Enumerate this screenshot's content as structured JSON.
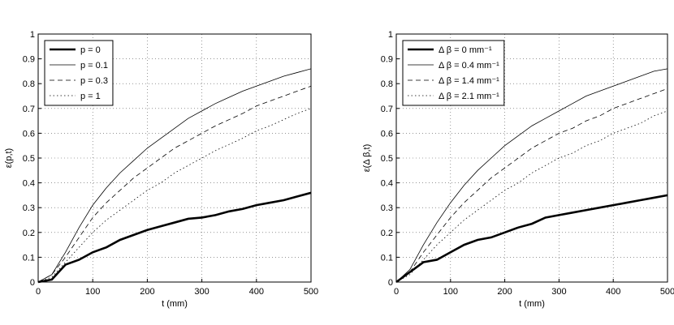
{
  "chart_data": [
    {
      "type": "line",
      "xlabel": "t (mm)",
      "ylabel": "ε(p,t)",
      "x": [
        0,
        25,
        50,
        75,
        100,
        125,
        150,
        175,
        200,
        225,
        250,
        275,
        300,
        325,
        350,
        375,
        400,
        425,
        450,
        475,
        500
      ],
      "xlim": [
        0,
        500
      ],
      "xticks": [
        0,
        100,
        200,
        300,
        400,
        500
      ],
      "ylim": [
        0,
        1
      ],
      "yticks": [
        0,
        0.1,
        0.2,
        0.3,
        0.4,
        0.5,
        0.6,
        0.7,
        0.8,
        0.9,
        1
      ],
      "grid": true,
      "legend": "upper left",
      "series": [
        {
          "name": "p = 0",
          "color": "#000000",
          "linewidth": 2.6,
          "dash": "solid",
          "values": [
            0,
            0.01,
            0.07,
            0.09,
            0.12,
            0.14,
            0.17,
            0.19,
            0.21,
            0.225,
            0.24,
            0.255,
            0.26,
            0.27,
            0.285,
            0.295,
            0.31,
            0.32,
            0.33,
            0.345,
            0.36
          ]
        },
        {
          "name": "p = 0.1",
          "color": "#000000",
          "linewidth": 0.8,
          "dash": "solid",
          "values": [
            0,
            0.03,
            0.12,
            0.22,
            0.31,
            0.38,
            0.44,
            0.49,
            0.54,
            0.58,
            0.62,
            0.66,
            0.69,
            0.72,
            0.745,
            0.77,
            0.79,
            0.81,
            0.83,
            0.845,
            0.86
          ]
        },
        {
          "name": "p = 0.3",
          "color": "#000000",
          "linewidth": 0.8,
          "dash": "dashed",
          "values": [
            0,
            0.03,
            0.1,
            0.18,
            0.26,
            0.32,
            0.37,
            0.42,
            0.46,
            0.5,
            0.54,
            0.57,
            0.6,
            0.63,
            0.655,
            0.68,
            0.71,
            0.73,
            0.75,
            0.77,
            0.79
          ]
        },
        {
          "name": "p = 1",
          "color": "#000000",
          "linewidth": 0.8,
          "dash": "dotted",
          "values": [
            0,
            0.02,
            0.08,
            0.14,
            0.2,
            0.25,
            0.29,
            0.33,
            0.37,
            0.4,
            0.44,
            0.47,
            0.5,
            0.53,
            0.555,
            0.58,
            0.61,
            0.63,
            0.655,
            0.68,
            0.7
          ]
        }
      ]
    },
    {
      "type": "line",
      "xlabel": "t (mm)",
      "ylabel": "ε(Δ β,t)",
      "x": [
        0,
        25,
        50,
        75,
        100,
        125,
        150,
        175,
        200,
        225,
        250,
        275,
        300,
        325,
        350,
        375,
        400,
        425,
        450,
        475,
        500
      ],
      "xlim": [
        0,
        500
      ],
      "xticks": [
        0,
        100,
        200,
        300,
        400,
        500
      ],
      "ylim": [
        0,
        1
      ],
      "yticks": [
        0,
        0.1,
        0.2,
        0.3,
        0.4,
        0.5,
        0.6,
        0.7,
        0.8,
        0.9,
        1
      ],
      "grid": true,
      "legend": "upper left",
      "series": [
        {
          "name": "Δ β = 0 mm⁻¹",
          "color": "#000000",
          "linewidth": 2.6,
          "dash": "solid",
          "values": [
            0,
            0.04,
            0.08,
            0.09,
            0.12,
            0.15,
            0.17,
            0.18,
            0.2,
            0.22,
            0.235,
            0.26,
            0.27,
            0.28,
            0.29,
            0.3,
            0.31,
            0.32,
            0.33,
            0.34,
            0.35
          ]
        },
        {
          "name": "Δ β = 0.4 mm⁻¹",
          "color": "#000000",
          "linewidth": 0.8,
          "dash": "solid",
          "values": [
            0,
            0.05,
            0.15,
            0.24,
            0.32,
            0.39,
            0.45,
            0.5,
            0.55,
            0.59,
            0.63,
            0.66,
            0.69,
            0.72,
            0.75,
            0.77,
            0.79,
            0.81,
            0.83,
            0.85,
            0.86
          ]
        },
        {
          "name": "Δ β = 1.4 mm⁻¹",
          "color": "#000000",
          "linewidth": 0.8,
          "dash": "dashed",
          "values": [
            0,
            0.04,
            0.12,
            0.19,
            0.26,
            0.32,
            0.37,
            0.42,
            0.46,
            0.5,
            0.54,
            0.57,
            0.6,
            0.62,
            0.65,
            0.67,
            0.7,
            0.72,
            0.74,
            0.76,
            0.78
          ]
        },
        {
          "name": "Δ β = 2.1 mm⁻¹",
          "color": "#000000",
          "linewidth": 0.8,
          "dash": "dotted",
          "values": [
            0,
            0.03,
            0.09,
            0.15,
            0.2,
            0.25,
            0.29,
            0.33,
            0.37,
            0.4,
            0.44,
            0.47,
            0.5,
            0.52,
            0.55,
            0.57,
            0.6,
            0.62,
            0.64,
            0.67,
            0.69
          ]
        }
      ]
    }
  ]
}
